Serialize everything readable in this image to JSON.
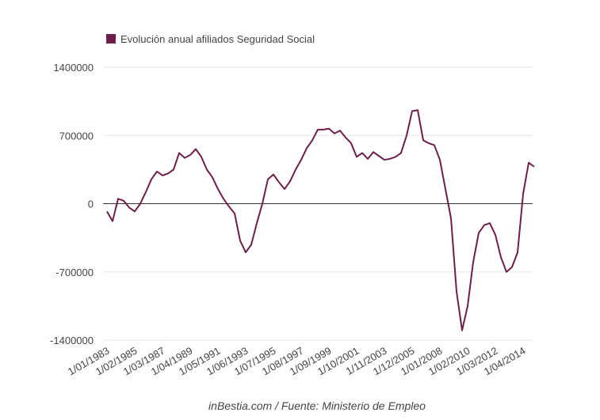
{
  "chart_data": {
    "type": "line",
    "footer": "inBestia.com / Fuente: Ministerio de Empleo",
    "categories": [
      "1/01/1983",
      null,
      null,
      null,
      null,
      "1/02/1985",
      null,
      null,
      null,
      null,
      "1/03/1987",
      null,
      null,
      null,
      null,
      "1/04/1989",
      null,
      null,
      null,
      null,
      "1/05/1991",
      null,
      null,
      null,
      null,
      "1/06/1993",
      null,
      null,
      null,
      null,
      "1/07/1995",
      null,
      null,
      null,
      null,
      "1/08/1997",
      null,
      null,
      null,
      null,
      "1/09/1999",
      null,
      null,
      null,
      null,
      "1/10/2001",
      null,
      null,
      null,
      null,
      "1/11/2003",
      null,
      null,
      null,
      null,
      "1/12/2005",
      null,
      null,
      null,
      null,
      "1/01/2008",
      null,
      null,
      null,
      null,
      "1/02/2010",
      null,
      null,
      null,
      null,
      "1/03/2012",
      null,
      null,
      null,
      null,
      "1/04/2014",
      null,
      null
    ],
    "series": [
      {
        "name": "Evolución anual afiliados Seguridad Social",
        "color": "#6d1f4a",
        "values": [
          -80000,
          -180000,
          50000,
          30000,
          -40000,
          -80000,
          0,
          120000,
          250000,
          330000,
          290000,
          310000,
          350000,
          520000,
          470000,
          500000,
          560000,
          480000,
          350000,
          270000,
          150000,
          50000,
          -30000,
          -100000,
          -380000,
          -500000,
          -420000,
          -200000,
          0,
          250000,
          300000,
          220000,
          150000,
          230000,
          350000,
          450000,
          570000,
          650000,
          760000,
          760000,
          770000,
          720000,
          750000,
          680000,
          620000,
          480000,
          520000,
          460000,
          530000,
          490000,
          450000,
          460000,
          480000,
          520000,
          700000,
          950000,
          960000,
          650000,
          620000,
          600000,
          450000,
          150000,
          -150000,
          -900000,
          -1300000,
          -1050000,
          -600000,
          -300000,
          -220000,
          -200000,
          -320000,
          -550000,
          -700000,
          -650000,
          -500000,
          100000,
          420000,
          380000
        ]
      }
    ],
    "ylim": [
      -1400000,
      1400000
    ],
    "yticks": [
      -1400000,
      -700000,
      0,
      700000,
      1400000
    ],
    "grid": true
  }
}
